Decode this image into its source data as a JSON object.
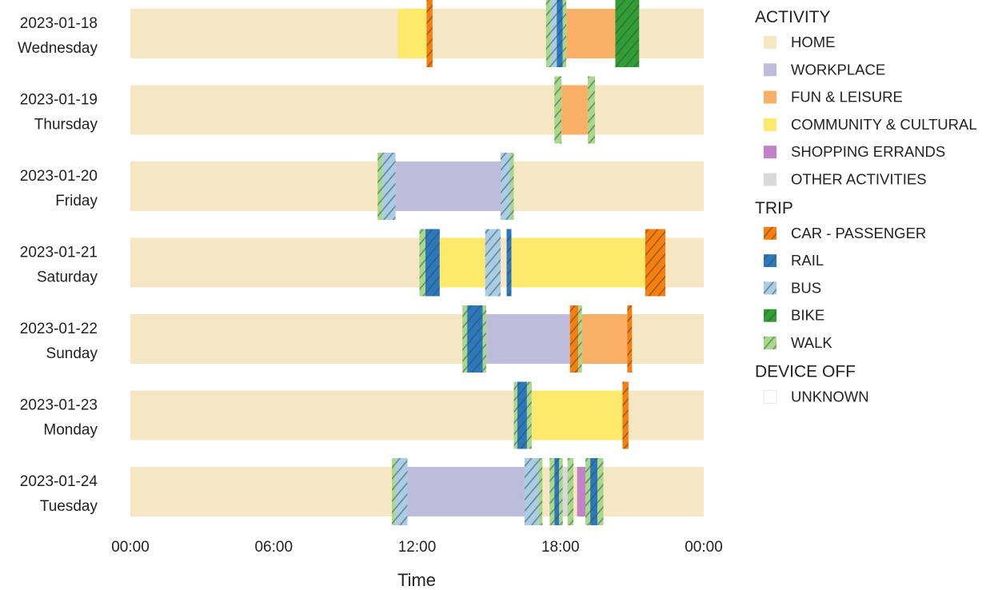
{
  "chart_data": {
    "type": "timeline",
    "xlabel": "Time",
    "x_ticks": [
      "00:00",
      "06:00",
      "12:00",
      "18:00",
      "00:00"
    ],
    "xlim_hours": [
      0,
      24
    ],
    "days": [
      {
        "date": "2023-01-18",
        "weekday": "Wednesday",
        "segments": [
          {
            "cat": "COMMUNITY & CULTURAL",
            "start": 11.2,
            "end": 12.4
          },
          {
            "cat": "CAR - PASSENGER",
            "start": 12.4,
            "end": 12.65
          },
          {
            "cat": "HOME",
            "start": 12.65,
            "end": 17.4
          },
          {
            "cat": "WALK",
            "start": 17.4,
            "end": 17.6
          },
          {
            "cat": "BUS",
            "start": 17.6,
            "end": 17.85
          },
          {
            "cat": "RAIL",
            "start": 17.85,
            "end": 18.1
          },
          {
            "cat": "WALK",
            "start": 18.1,
            "end": 18.25
          },
          {
            "cat": "FUN & LEISURE",
            "start": 18.25,
            "end": 20.3
          },
          {
            "cat": "BIKE",
            "start": 20.3,
            "end": 21.3
          },
          {
            "cat": "HOME",
            "start": 21.3,
            "end": 24
          }
        ]
      },
      {
        "date": "2023-01-19",
        "weekday": "Thursday",
        "segments": [
          {
            "cat": "HOME",
            "start": 0,
            "end": 17.75
          },
          {
            "cat": "WALK",
            "start": 17.75,
            "end": 18.05
          },
          {
            "cat": "FUN & LEISURE",
            "start": 18.05,
            "end": 19.15
          },
          {
            "cat": "WALK",
            "start": 19.15,
            "end": 19.45
          },
          {
            "cat": "HOME",
            "start": 19.45,
            "end": 24
          }
        ]
      },
      {
        "date": "2023-01-20",
        "weekday": "Friday",
        "segments": [
          {
            "cat": "HOME",
            "start": 0,
            "end": 10.35
          },
          {
            "cat": "WALK",
            "start": 10.35,
            "end": 10.55
          },
          {
            "cat": "BUS",
            "start": 10.55,
            "end": 11.1
          },
          {
            "cat": "WORKPLACE",
            "start": 11.1,
            "end": 15.5
          },
          {
            "cat": "BUS",
            "start": 15.5,
            "end": 15.9
          },
          {
            "cat": "WALK",
            "start": 15.9,
            "end": 16.05
          },
          {
            "cat": "HOME",
            "start": 16.05,
            "end": 24
          }
        ]
      },
      {
        "date": "2023-01-21",
        "weekday": "Saturday",
        "segments": [
          {
            "cat": "HOME",
            "start": 0,
            "end": 12.1
          },
          {
            "cat": "WALK",
            "start": 12.1,
            "end": 12.35
          },
          {
            "cat": "RAIL",
            "start": 12.35,
            "end": 12.95
          },
          {
            "cat": "COMMUNITY & CULTURAL",
            "start": 12.95,
            "end": 14.85
          },
          {
            "cat": "BUS",
            "start": 14.85,
            "end": 15.5
          },
          {
            "cat": "HOME",
            "start": 15.5,
            "end": 15.75
          },
          {
            "cat": "RAIL",
            "start": 15.75,
            "end": 15.95
          },
          {
            "cat": "COMMUNITY & CULTURAL",
            "start": 15.95,
            "end": 21.55
          },
          {
            "cat": "CAR - PASSENGER",
            "start": 21.55,
            "end": 22.4
          },
          {
            "cat": "HOME",
            "start": 22.4,
            "end": 24
          }
        ]
      },
      {
        "date": "2023-01-22",
        "weekday": "Sunday",
        "segments": [
          {
            "cat": "HOME",
            "start": 0,
            "end": 13.9
          },
          {
            "cat": "WALK",
            "start": 13.9,
            "end": 14.1
          },
          {
            "cat": "RAIL",
            "start": 14.1,
            "end": 14.75
          },
          {
            "cat": "WALK",
            "start": 14.75,
            "end": 14.9
          },
          {
            "cat": "WORKPLACE",
            "start": 14.9,
            "end": 18.4
          },
          {
            "cat": "CAR - PASSENGER",
            "start": 18.4,
            "end": 18.75
          },
          {
            "cat": "WALK",
            "start": 18.75,
            "end": 18.9
          },
          {
            "cat": "FUN & LEISURE",
            "start": 18.9,
            "end": 20.8
          },
          {
            "cat": "CAR - PASSENGER",
            "start": 20.8,
            "end": 21.0
          },
          {
            "cat": "HOME",
            "start": 21.0,
            "end": 24
          }
        ]
      },
      {
        "date": "2023-01-23",
        "weekday": "Monday",
        "segments": [
          {
            "cat": "HOME",
            "start": 0,
            "end": 16.05
          },
          {
            "cat": "WALK",
            "start": 16.05,
            "end": 16.2
          },
          {
            "cat": "RAIL",
            "start": 16.2,
            "end": 16.6
          },
          {
            "cat": "WALK",
            "start": 16.6,
            "end": 16.8
          },
          {
            "cat": "COMMUNITY & CULTURAL",
            "start": 16.8,
            "end": 20.6
          },
          {
            "cat": "CAR - PASSENGER",
            "start": 20.6,
            "end": 20.85
          },
          {
            "cat": "HOME",
            "start": 20.85,
            "end": 24
          }
        ]
      },
      {
        "date": "2023-01-24",
        "weekday": "Tuesday",
        "segments": [
          {
            "cat": "HOME",
            "start": 0,
            "end": 10.95
          },
          {
            "cat": "WALK",
            "start": 10.95,
            "end": 11.1
          },
          {
            "cat": "BUS",
            "start": 11.1,
            "end": 11.6
          },
          {
            "cat": "WORKPLACE",
            "start": 11.6,
            "end": 16.5
          },
          {
            "cat": "BUS",
            "start": 16.5,
            "end": 17.1
          },
          {
            "cat": "WALK",
            "start": 17.1,
            "end": 17.25
          },
          {
            "cat": "HOME",
            "start": 17.25,
            "end": 17.55
          },
          {
            "cat": "WALK",
            "start": 17.55,
            "end": 17.75
          },
          {
            "cat": "RAIL",
            "start": 17.75,
            "end": 17.95
          },
          {
            "cat": "WALK",
            "start": 17.95,
            "end": 18.1
          },
          {
            "cat": "OTHER ACTIVITIES",
            "start": 18.1,
            "end": 18.3
          },
          {
            "cat": "WALK",
            "start": 18.3,
            "end": 18.55
          },
          {
            "cat": "HOME",
            "start": 18.55,
            "end": 18.7
          },
          {
            "cat": "SHOPPING ERRANDS",
            "start": 18.7,
            "end": 19.05
          },
          {
            "cat": "WALK",
            "start": 19.05,
            "end": 19.25
          },
          {
            "cat": "RAIL",
            "start": 19.25,
            "end": 19.55
          },
          {
            "cat": "WALK",
            "start": 19.55,
            "end": 19.8
          },
          {
            "cat": "HOME",
            "start": 19.8,
            "end": 24
          }
        ]
      }
    ],
    "legend": {
      "placement": "right",
      "groups": [
        {
          "title": "ACTIVITY",
          "items": [
            {
              "label": "HOME",
              "color": "#f5e6c4",
              "hatched": false
            },
            {
              "label": "WORKPLACE",
              "color": "#bfbbdb",
              "hatched": false
            },
            {
              "label": "FUN & LEISURE",
              "color": "#f9b066",
              "hatched": false
            },
            {
              "label": "COMMUNITY & CULTURAL",
              "color": "#fde96b",
              "hatched": false
            },
            {
              "label": "SHOPPING ERRANDS",
              "color": "#c282c7",
              "hatched": false
            },
            {
              "label": "OTHER ACTIVITIES",
              "color": "#d9d9d9",
              "hatched": false
            }
          ]
        },
        {
          "title": "TRIP",
          "items": [
            {
              "label": "CAR - PASSENGER",
              "color": "#f77f0e",
              "hatched": true
            },
            {
              "label": "RAIL",
              "color": "#2a79bd",
              "hatched": true
            },
            {
              "label": "BUS",
              "color": "#a8cde6",
              "hatched": true
            },
            {
              "label": "BIKE",
              "color": "#2f9e33",
              "hatched": true
            },
            {
              "label": "WALK",
              "color": "#a6d98a",
              "hatched": true
            }
          ]
        },
        {
          "title": "DEVICE OFF",
          "items": [
            {
              "label": "UNKNOWN",
              "color": "#ffffff",
              "hatched": false,
              "outlined": true
            }
          ]
        }
      ]
    }
  }
}
